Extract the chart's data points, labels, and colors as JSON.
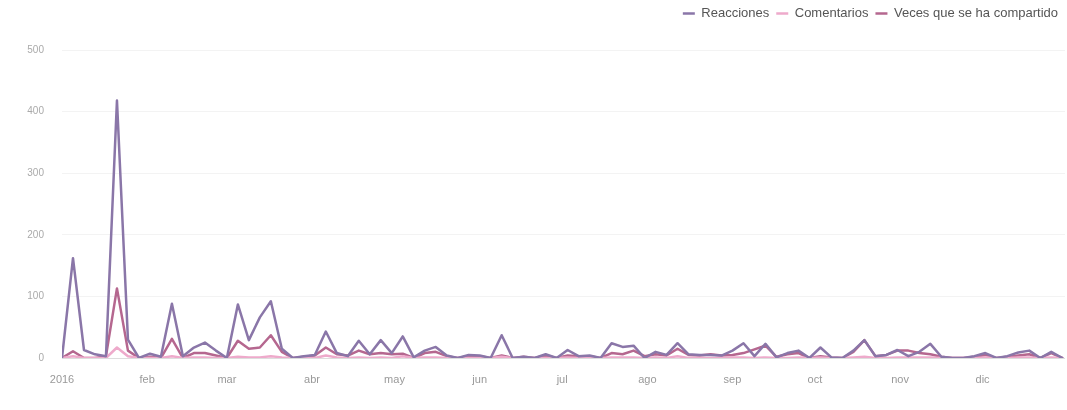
{
  "chart_data": {
    "type": "line",
    "x": [
      "2016-01-01",
      "2016-01-05",
      "2016-01-09",
      "2016-01-13",
      "2016-01-17",
      "2016-01-21",
      "2016-01-25",
      "2016-01-29",
      "2016-02-02",
      "2016-02-06",
      "2016-02-10",
      "2016-02-14",
      "2016-02-18",
      "2016-02-22",
      "2016-02-26",
      "2016-03-01",
      "2016-03-05",
      "2016-03-09",
      "2016-03-13",
      "2016-03-17",
      "2016-03-21",
      "2016-03-25",
      "2016-03-29",
      "2016-04-02",
      "2016-04-06",
      "2016-04-10",
      "2016-04-14",
      "2016-04-18",
      "2016-04-22",
      "2016-04-26",
      "2016-04-30",
      "2016-05-04",
      "2016-05-08",
      "2016-05-12",
      "2016-05-16",
      "2016-05-20",
      "2016-05-24",
      "2016-05-28",
      "2016-06-01",
      "2016-06-05",
      "2016-06-09",
      "2016-06-13",
      "2016-06-17",
      "2016-06-21",
      "2016-06-25",
      "2016-06-29",
      "2016-07-03",
      "2016-07-07",
      "2016-07-11",
      "2016-07-15",
      "2016-07-19",
      "2016-07-23",
      "2016-07-27",
      "2016-07-31",
      "2016-08-04",
      "2016-08-08",
      "2016-08-12",
      "2016-08-16",
      "2016-08-20",
      "2016-08-24",
      "2016-08-28",
      "2016-09-01",
      "2016-09-05",
      "2016-09-09",
      "2016-09-13",
      "2016-09-17",
      "2016-09-21",
      "2016-09-25",
      "2016-09-29",
      "2016-10-03",
      "2016-10-07",
      "2016-10-11",
      "2016-10-15",
      "2016-10-19",
      "2016-10-23",
      "2016-10-27",
      "2016-10-31",
      "2016-11-04",
      "2016-11-08",
      "2016-11-12",
      "2016-11-16",
      "2016-11-20",
      "2016-11-24",
      "2016-11-28",
      "2016-12-02",
      "2016-12-06",
      "2016-12-10",
      "2016-12-14",
      "2016-12-18",
      "2016-12-22",
      "2016-12-26",
      "2016-12-30"
    ],
    "series": [
      {
        "name": "Reacciones",
        "color": "#8a76a8",
        "values": [
          0,
          162,
          13,
          6,
          3,
          418,
          30,
          0,
          7,
          2,
          88,
          3,
          17,
          25,
          12,
          0,
          87,
          29,
          66,
          92,
          15,
          0,
          3,
          5,
          43,
          8,
          3,
          28,
          6,
          29,
          8,
          35,
          1,
          12,
          18,
          4,
          0,
          5,
          4,
          0,
          37,
          0,
          2,
          0,
          6,
          0,
          13,
          3,
          4,
          0,
          24,
          18,
          20,
          0,
          10,
          5,
          24,
          6,
          5,
          5,
          4,
          12,
          24,
          3,
          23,
          1,
          8,
          12,
          0,
          17,
          1,
          0,
          12,
          29,
          3,
          5,
          13,
          3,
          10,
          23,
          2,
          0,
          0,
          3,
          8,
          0,
          3,
          9,
          12,
          0,
          10,
          0
        ]
      },
      {
        "name": "Comentarios",
        "color": "#eeaacb",
        "values": [
          0,
          3,
          0,
          0,
          0,
          17,
          3,
          0,
          0,
          0,
          3,
          0,
          1,
          1,
          0,
          0,
          2,
          1,
          1,
          3,
          1,
          0,
          0,
          0,
          4,
          1,
          0,
          1,
          0,
          1,
          0,
          3,
          0,
          1,
          1,
          0,
          0,
          0,
          0,
          0,
          2,
          0,
          0,
          0,
          0,
          0,
          1,
          0,
          0,
          0,
          1,
          1,
          1,
          0,
          1,
          0,
          3,
          0,
          0,
          0,
          0,
          1,
          1,
          0,
          1,
          0,
          0,
          1,
          0,
          1,
          0,
          0,
          1,
          2,
          0,
          0,
          1,
          1,
          1,
          1,
          0,
          0,
          0,
          0,
          1,
          0,
          0,
          1,
          1,
          0,
          1,
          0
        ]
      },
      {
        "name": "Veces que se ha compartido",
        "color": "#b5678f",
        "values": [
          0,
          11,
          0,
          0,
          3,
          113,
          12,
          0,
          2,
          0,
          31,
          0,
          8,
          8,
          4,
          0,
          28,
          15,
          17,
          37,
          10,
          0,
          2,
          4,
          17,
          6,
          4,
          12,
          6,
          8,
          6,
          7,
          0,
          8,
          10,
          3,
          0,
          3,
          3,
          0,
          4,
          0,
          2,
          0,
          4,
          0,
          4,
          3,
          3,
          0,
          8,
          6,
          12,
          3,
          6,
          4,
          15,
          5,
          4,
          6,
          4,
          5,
          8,
          14,
          20,
          2,
          6,
          8,
          0,
          3,
          1,
          0,
          10,
          29,
          3,
          5,
          12,
          12,
          8,
          6,
          2,
          0,
          0,
          2,
          5,
          0,
          2,
          4,
          6,
          0,
          8,
          0
        ]
      }
    ],
    "xlim": [
      "2016-01-01",
      "2016-12-31"
    ],
    "xticks": [
      {
        "value": "2016-01-01",
        "label": "2016"
      },
      {
        "value": "2016-02-01",
        "label": "feb"
      },
      {
        "value": "2016-03-01",
        "label": "mar"
      },
      {
        "value": "2016-04-01",
        "label": "abr"
      },
      {
        "value": "2016-05-01",
        "label": "may"
      },
      {
        "value": "2016-06-01",
        "label": "jun"
      },
      {
        "value": "2016-07-01",
        "label": "jul"
      },
      {
        "value": "2016-08-01",
        "label": "ago"
      },
      {
        "value": "2016-09-01",
        "label": "sep"
      },
      {
        "value": "2016-10-01",
        "label": "oct"
      },
      {
        "value": "2016-11-01",
        "label": "nov"
      },
      {
        "value": "2016-12-01",
        "label": "dic"
      }
    ],
    "ylim": [
      0,
      500
    ],
    "yticks": [
      0,
      100,
      200,
      300,
      400,
      500
    ],
    "grid": "y",
    "legend": "top right"
  }
}
